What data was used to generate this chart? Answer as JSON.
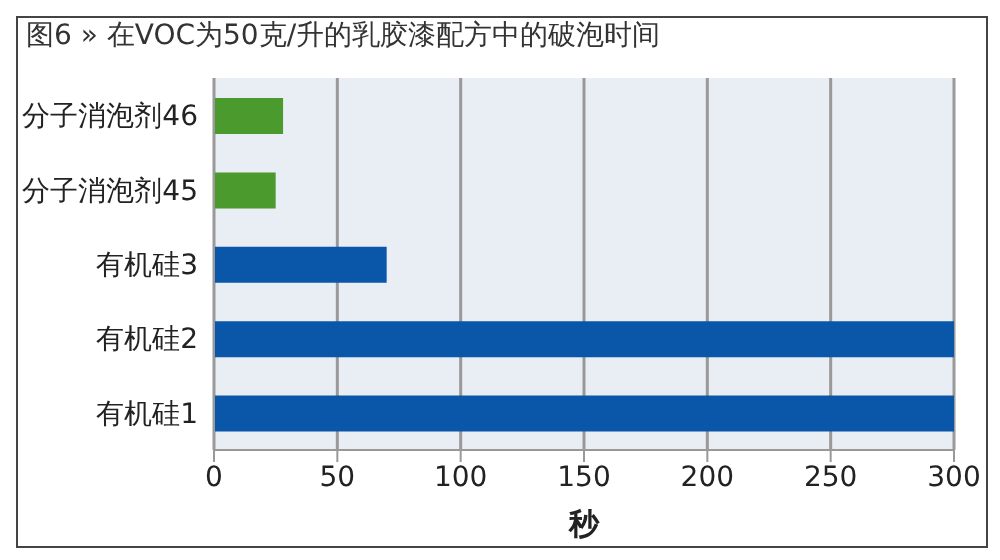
{
  "chart_data": {
    "type": "bar",
    "orientation": "horizontal",
    "title": "图6 » 在VOC为50克/升的乳胶漆配方中的破泡时间",
    "xlabel": "秒",
    "categories": [
      "分子消泡剂46",
      "分子消泡剂45",
      "有机硅3",
      "有机硅2",
      "有机硅1"
    ],
    "values": [
      28,
      25,
      70,
      300,
      300
    ],
    "colors": [
      "#4a9a2e",
      "#4a9a2e",
      "#0a56a8",
      "#0a56a8",
      "#0a56a8"
    ],
    "xlim": [
      0,
      300
    ],
    "xticks": [
      0,
      50,
      100,
      150,
      200,
      250,
      300
    ],
    "grid": "x"
  }
}
